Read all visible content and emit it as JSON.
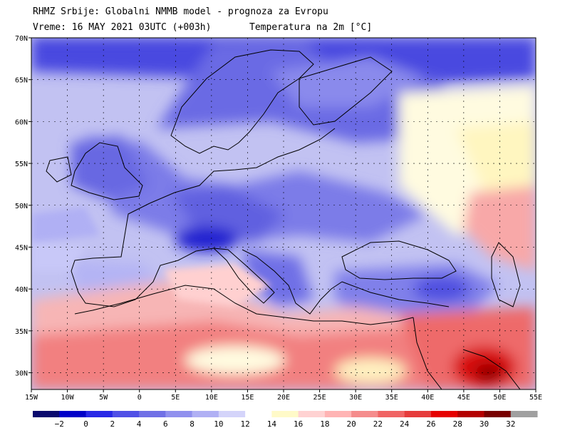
{
  "header": {
    "line1": "RHMZ Srbije: Globalni NMMB model - prognoza za Evropu",
    "line2_left": "Vreme: 16 MAY 2021 03UTC (+003h)",
    "line2_right": "Temperatura na 2m [°C]"
  },
  "map": {
    "lon_ticks": [
      "15W",
      "10W",
      "5W",
      "0",
      "5E",
      "10E",
      "15E",
      "20E",
      "25E",
      "30E",
      "35E",
      "40E",
      "45E",
      "50E",
      "55E"
    ],
    "lat_ticks": [
      "70N",
      "65N",
      "60N",
      "55N",
      "50N",
      "45N",
      "40N",
      "35N",
      "30N"
    ],
    "lon_range": [
      -15,
      55
    ],
    "lat_range": [
      28,
      70
    ]
  },
  "legend": {
    "labels": [
      "-2",
      "0",
      "2",
      "4",
      "6",
      "8",
      "10",
      "12",
      "14",
      "16",
      "18",
      "20",
      "22",
      "24",
      "26",
      "28",
      "30",
      "32"
    ],
    "colors": [
      "#0a0a6e",
      "#0000c8",
      "#2828e6",
      "#5050e6",
      "#7070e6",
      "#9090ee",
      "#b0b0f4",
      "#d4d4fa",
      "#ffffff",
      "#fffac8",
      "#ffd2d2",
      "#ffb4b4",
      "#f58c8c",
      "#f06464",
      "#e63c3c",
      "#e60000",
      "#b40000",
      "#780000",
      "#a0a0a0"
    ]
  }
}
